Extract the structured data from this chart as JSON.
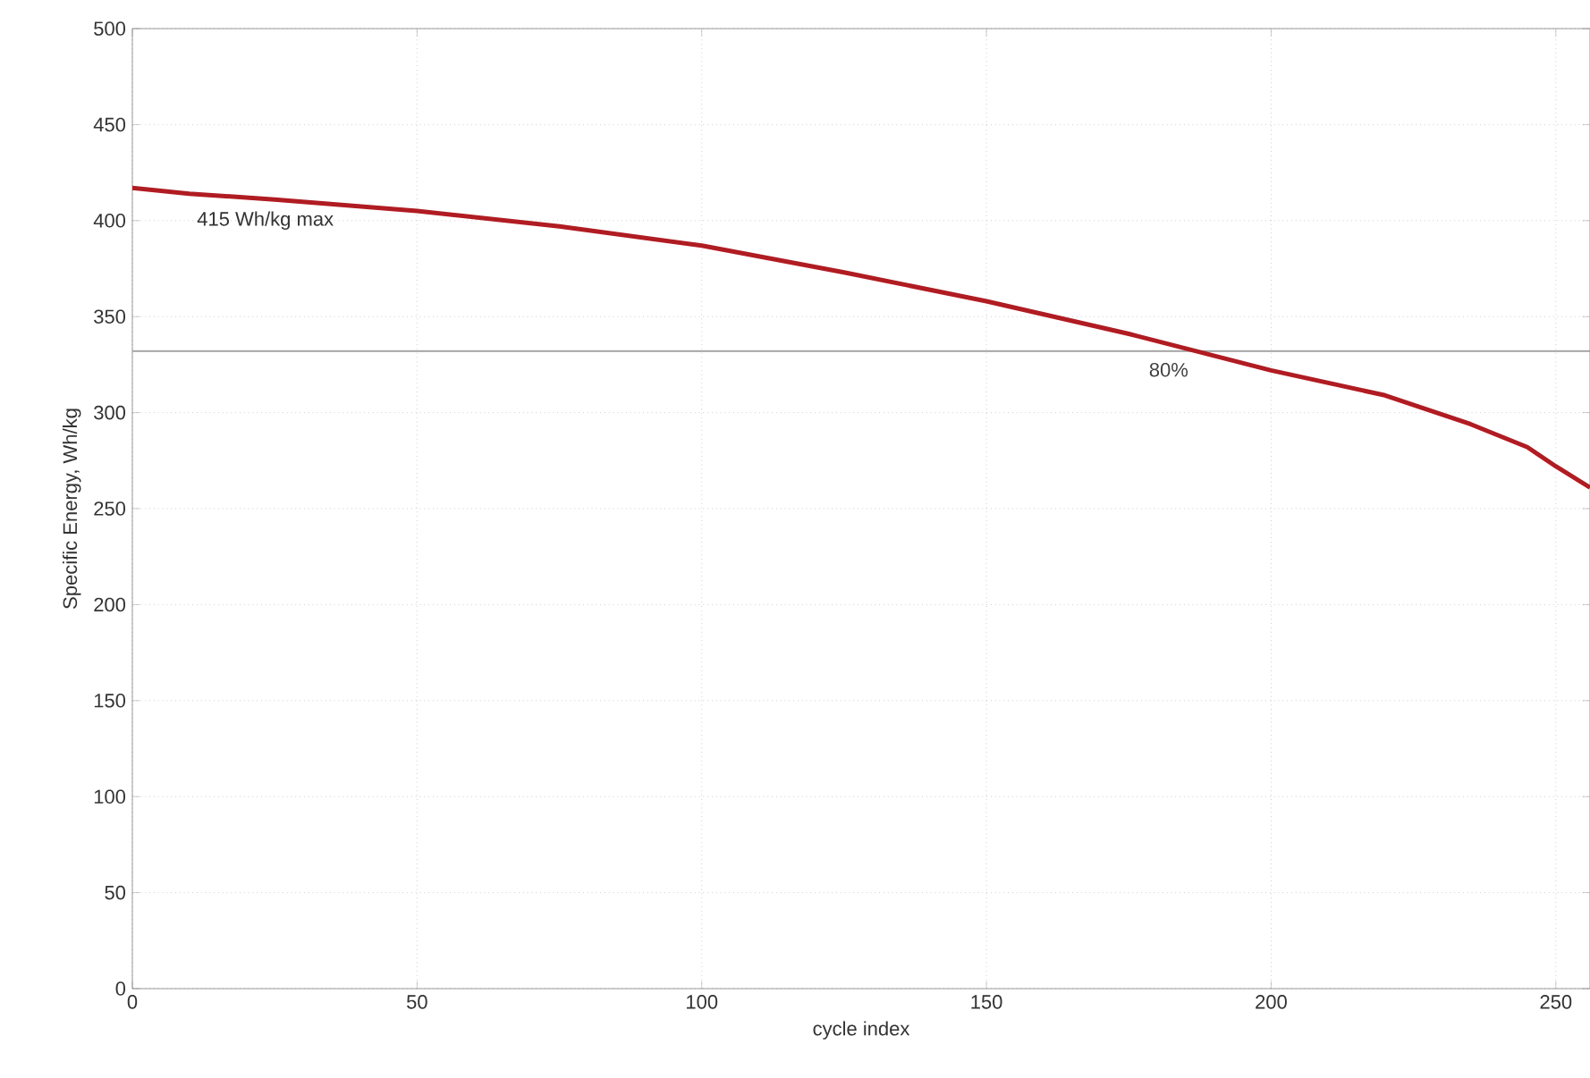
{
  "chart_data": {
    "type": "line",
    "xlabel": "cycle index",
    "ylabel": "Specific Energy, Wh/kg",
    "x": [
      0,
      10,
      25,
      50,
      75,
      100,
      125,
      150,
      175,
      200,
      220,
      235,
      245,
      250,
      256
    ],
    "series": [
      {
        "color": "#b01c22",
        "values": [
          417,
          414,
          411,
          405,
          397,
          387,
          373,
          358,
          341,
          322,
          309,
          294,
          282,
          272,
          261
        ]
      }
    ],
    "xlim": [
      0,
      256
    ],
    "ylim": [
      0,
      500
    ],
    "xticks": [
      0,
      50,
      100,
      150,
      200,
      250
    ],
    "yticks": [
      0,
      50,
      100,
      150,
      200,
      250,
      300,
      350,
      400,
      450,
      500
    ],
    "grid": true,
    "marker": "none",
    "line_style": "solid",
    "ref_lines": [
      {
        "axis": "y",
        "value": 332,
        "color": "#a0a0a0"
      }
    ],
    "annotations": [
      "415 Wh/kg max",
      {
        "text": "80%",
        "x": 182,
        "y": 332
      }
    ]
  }
}
